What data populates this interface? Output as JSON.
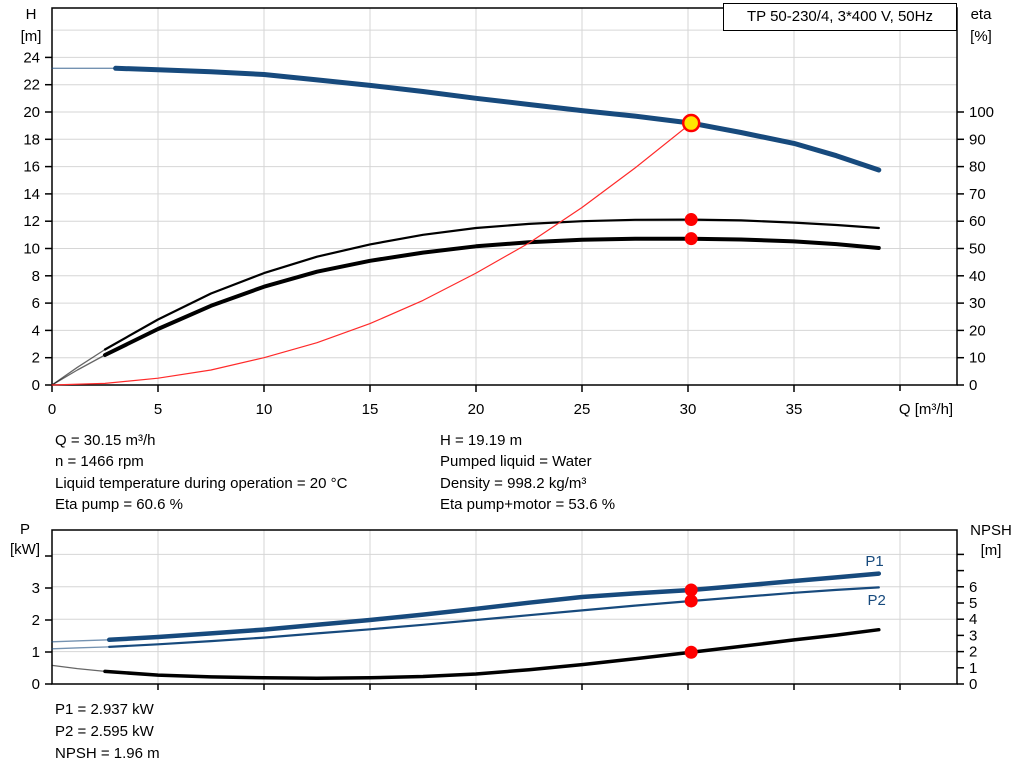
{
  "title_box": {
    "label": "TP 50-230/4, 3*400 V, 50Hz"
  },
  "info_panel": {
    "left": [
      "Q = 30.15 m³/h",
      "n = 1466 rpm",
      "Liquid temperature during operation = 20 °C",
      "Eta pump = 60.6 %"
    ],
    "right": [
      "H = 19.19 m",
      "Pumped liquid = Water",
      "Density = 998.2 kg/m³",
      "Eta pump+motor = 53.6 %"
    ]
  },
  "results_panel": {
    "lines": [
      "P1 = 2.937 kW",
      "P2 = 2.595 kW",
      "NPSH = 1.96 m"
    ]
  },
  "colors": {
    "curve_blue": "#174a7d",
    "curve_black": "#000000",
    "curve_red": "#ff2a2a",
    "marker_red": "#ff0000",
    "marker_yellow": "#ffe400",
    "grid": "#d6d6d6",
    "axis": "#000000"
  },
  "chart_data": [
    {
      "type": "line",
      "x": {
        "label": "Q [m³/h]",
        "min": 0,
        "max": 42.7,
        "ticks": [
          0,
          5,
          10,
          15,
          20,
          25,
          30,
          35
        ],
        "unlabeled_ticks": [
          40
        ]
      },
      "y_left": {
        "label_lines": [
          "H",
          "[m]"
        ],
        "min": 0,
        "max": 27.6,
        "ticks": [
          0,
          2,
          4,
          6,
          8,
          10,
          12,
          14,
          16,
          18,
          20,
          22,
          24
        ],
        "unlabeled_ticks": []
      },
      "y_right": {
        "label_lines": [
          "eta",
          "[%]"
        ],
        "min": 0,
        "max": 138,
        "ticks": [
          0,
          10,
          20,
          30,
          40,
          50,
          60,
          70,
          80,
          90,
          100
        ],
        "unlabeled_ticks": []
      },
      "grid": {
        "h_axis": "left",
        "h_values": [
          2,
          4,
          6,
          8,
          10,
          12,
          14,
          16,
          18,
          20,
          22,
          24,
          26
        ],
        "v_values": [
          5,
          10,
          15,
          20,
          25,
          30,
          35,
          40
        ]
      },
      "series": [
        {
          "name": "head-curve",
          "axis": "left",
          "color_key": "curve_blue",
          "width": 5,
          "lead_until": 3,
          "points": [
            [
              0,
              23.2
            ],
            [
              1.5,
              23.2
            ],
            [
              3,
              23.2
            ],
            [
              5,
              23.1
            ],
            [
              7.5,
              22.95
            ],
            [
              10,
              22.75
            ],
            [
              12.5,
              22.35
            ],
            [
              15,
              21.95
            ],
            [
              17.5,
              21.5
            ],
            [
              20,
              21.0
            ],
            [
              22.5,
              20.55
            ],
            [
              25,
              20.1
            ],
            [
              27.5,
              19.7
            ],
            [
              30.15,
              19.19
            ],
            [
              32.5,
              18.5
            ],
            [
              35,
              17.7
            ],
            [
              37,
              16.8
            ],
            [
              39,
              15.75
            ]
          ]
        },
        {
          "name": "eta-pump-curve",
          "axis": "right",
          "color_key": "curve_black",
          "width": 2.2,
          "lead_until": 2.5,
          "points": [
            [
              0,
              0
            ],
            [
              1.2,
              6.5
            ],
            [
              2.5,
              13
            ],
            [
              5,
              24
            ],
            [
              7.5,
              33.5
            ],
            [
              10,
              41
            ],
            [
              12.5,
              47
            ],
            [
              15,
              51.5
            ],
            [
              17.5,
              55
            ],
            [
              20,
              57.5
            ],
            [
              22.5,
              59
            ],
            [
              25,
              60
            ],
            [
              27.5,
              60.5
            ],
            [
              30.15,
              60.6
            ],
            [
              32.5,
              60.3
            ],
            [
              35,
              59.5
            ],
            [
              37,
              58.6
            ],
            [
              39,
              57.5
            ]
          ]
        },
        {
          "name": "eta-pump-motor-curve",
          "axis": "right",
          "color_key": "curve_black",
          "width": 4,
          "lead_until": 2.5,
          "points": [
            [
              0,
              0
            ],
            [
              1.2,
              5.5
            ],
            [
              2.5,
              11
            ],
            [
              5,
              20.5
            ],
            [
              7.5,
              29
            ],
            [
              10,
              36
            ],
            [
              12.5,
              41.5
            ],
            [
              15,
              45.5
            ],
            [
              17.5,
              48.5
            ],
            [
              20,
              50.8
            ],
            [
              22.5,
              52.3
            ],
            [
              25,
              53.2
            ],
            [
              27.5,
              53.6
            ],
            [
              30.15,
              53.6
            ],
            [
              32.5,
              53.3
            ],
            [
              35,
              52.6
            ],
            [
              37,
              51.6
            ],
            [
              39,
              50.2
            ]
          ]
        },
        {
          "name": "system-curve",
          "axis": "left",
          "color_key": "curve_red",
          "width": 1.2,
          "lead_until": 0,
          "points": [
            [
              0,
              0
            ],
            [
              2.5,
              0.12
            ],
            [
              5,
              0.5
            ],
            [
              7.5,
              1.1
            ],
            [
              10,
              2.0
            ],
            [
              12.5,
              3.1
            ],
            [
              15,
              4.5
            ],
            [
              17.5,
              6.2
            ],
            [
              20,
              8.2
            ],
            [
              22.5,
              10.4
            ],
            [
              25,
              13.0
            ],
            [
              27.5,
              15.9
            ],
            [
              30.15,
              19.19
            ]
          ]
        }
      ],
      "markers": [
        {
          "name": "duty-point",
          "kind": "duty",
          "axis": "left",
          "q": 30.15,
          "value": 19.19
        },
        {
          "name": "eta-pump-point",
          "kind": "dot",
          "axis": "right",
          "q": 30.15,
          "value": 60.6
        },
        {
          "name": "eta-pump-motor-point",
          "kind": "dot",
          "axis": "right",
          "q": 30.15,
          "value": 53.6
        }
      ],
      "annotations": []
    },
    {
      "type": "line",
      "x": {
        "label": "",
        "min": 0,
        "max": 42.7,
        "ticks": [],
        "unlabeled_ticks": [
          5,
          10,
          15,
          20,
          25,
          30,
          35,
          40
        ]
      },
      "y_left": {
        "label_lines": [
          "P",
          "[kW]"
        ],
        "min": 0,
        "max": 4.8,
        "ticks": [
          0,
          1,
          2,
          3
        ],
        "unlabeled_ticks": [
          4
        ]
      },
      "y_right": {
        "label_lines": [
          "NPSH",
          "[m]"
        ],
        "min": 0,
        "max": 9.5,
        "ticks": [
          0,
          1,
          2,
          3,
          4,
          5,
          6
        ],
        "unlabeled_ticks": [
          7,
          8
        ]
      },
      "grid": {
        "h_axis": "right",
        "h_values": [
          2,
          4,
          6,
          8
        ],
        "v_values": [
          5,
          10,
          15,
          20,
          25,
          30,
          35,
          40
        ]
      },
      "series": [
        {
          "name": "p1-curve",
          "axis": "left",
          "color_key": "curve_blue",
          "width": 4.5,
          "lead_until": 2.7,
          "points": [
            [
              0,
              1.32
            ],
            [
              1.3,
              1.35
            ],
            [
              2.7,
              1.38
            ],
            [
              5,
              1.47
            ],
            [
              7.5,
              1.58
            ],
            [
              10,
              1.7
            ],
            [
              12.5,
              1.85
            ],
            [
              15,
              2.0
            ],
            [
              17.5,
              2.17
            ],
            [
              20,
              2.35
            ],
            [
              22.5,
              2.54
            ],
            [
              25,
              2.72
            ],
            [
              27.5,
              2.83
            ],
            [
              30.15,
              2.937
            ],
            [
              32.5,
              3.07
            ],
            [
              35,
              3.22
            ],
            [
              37,
              3.33
            ],
            [
              39,
              3.45
            ]
          ]
        },
        {
          "name": "p2-curve",
          "axis": "left",
          "color_key": "curve_blue",
          "width": 2.2,
          "lead_until": 2.7,
          "points": [
            [
              0,
              1.1
            ],
            [
              1.3,
              1.13
            ],
            [
              2.7,
              1.16
            ],
            [
              5,
              1.24
            ],
            [
              7.5,
              1.34
            ],
            [
              10,
              1.45
            ],
            [
              12.5,
              1.58
            ],
            [
              15,
              1.71
            ],
            [
              17.5,
              1.85
            ],
            [
              20,
              2.0
            ],
            [
              22.5,
              2.15
            ],
            [
              25,
              2.3
            ],
            [
              27.5,
              2.45
            ],
            [
              30.15,
              2.595
            ],
            [
              32.5,
              2.72
            ],
            [
              35,
              2.85
            ],
            [
              37,
              2.94
            ],
            [
              39,
              3.02
            ]
          ]
        },
        {
          "name": "npsh-curve",
          "axis": "right",
          "color_key": "curve_black",
          "width": 3.5,
          "lead_until": 2.5,
          "points": [
            [
              0,
              1.15
            ],
            [
              1.2,
              0.95
            ],
            [
              2.5,
              0.78
            ],
            [
              5,
              0.55
            ],
            [
              7.5,
              0.44
            ],
            [
              10,
              0.38
            ],
            [
              12.5,
              0.36
            ],
            [
              15,
              0.38
            ],
            [
              17.5,
              0.46
            ],
            [
              20,
              0.62
            ],
            [
              22.5,
              0.88
            ],
            [
              25,
              1.2
            ],
            [
              27.5,
              1.56
            ],
            [
              30.15,
              1.96
            ],
            [
              32.5,
              2.32
            ],
            [
              35,
              2.72
            ],
            [
              37,
              3.02
            ],
            [
              39,
              3.35
            ]
          ]
        }
      ],
      "markers": [
        {
          "name": "p1-point",
          "kind": "dot",
          "axis": "left",
          "q": 30.15,
          "value": 2.937
        },
        {
          "name": "p2-point",
          "kind": "dot",
          "axis": "left",
          "q": 30.15,
          "value": 2.595
        },
        {
          "name": "npsh-point",
          "kind": "dot",
          "axis": "right",
          "q": 30.15,
          "value": 1.96
        }
      ],
      "annotations": [
        {
          "name": "p1-label",
          "text": "P1",
          "axis": "left",
          "q": 38.8,
          "v": 3.85,
          "color_key": "curve_blue"
        },
        {
          "name": "p2-label",
          "text": "P2",
          "axis": "left",
          "q": 38.9,
          "v": 2.62,
          "color_key": "curve_blue"
        }
      ]
    }
  ]
}
